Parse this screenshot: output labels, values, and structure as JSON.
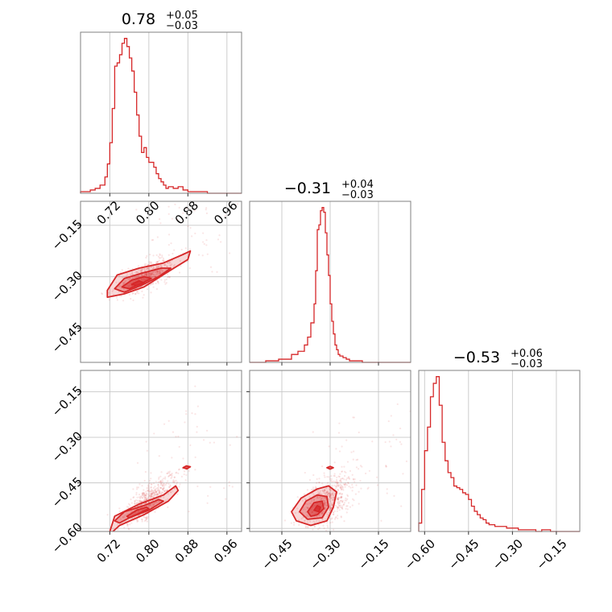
{
  "figure": {
    "type": "corner-plot",
    "color": "#d62728"
  },
  "chart_data": [
    {
      "type": "histogram",
      "panel": "diag-0",
      "title": {
        "value": "0.78",
        "upper": "+0.05",
        "lower": "−0.03"
      },
      "xlim": [
        0.66,
        0.99
      ],
      "xticks": [
        0.72,
        0.8,
        0.88,
        0.96
      ],
      "xtick_labels": [
        "0.72",
        "0.80",
        "0.88",
        "0.96"
      ],
      "grid": true,
      "bins": [
        0.66,
        0.67,
        0.68,
        0.69,
        0.7,
        0.71,
        0.715,
        0.72,
        0.725,
        0.73,
        0.735,
        0.74,
        0.745,
        0.75,
        0.755,
        0.76,
        0.765,
        0.77,
        0.775,
        0.78,
        0.785,
        0.79,
        0.795,
        0.8,
        0.805,
        0.81,
        0.815,
        0.82,
        0.825,
        0.83,
        0.835,
        0.84,
        0.85,
        0.86,
        0.87,
        0.88,
        0.89,
        0.9,
        0.91,
        0.92,
        0.93,
        0.94,
        0.95,
        0.96,
        0.97,
        0.98,
        0.99
      ],
      "counts": [
        1,
        1,
        2,
        3,
        5,
        10,
        18,
        31,
        52,
        78,
        80,
        85,
        92,
        95,
        90,
        83,
        75,
        62,
        48,
        35,
        25,
        28,
        22,
        19,
        19,
        16,
        12,
        9,
        7,
        5,
        3,
        4,
        3,
        4,
        2,
        1,
        1,
        1,
        1,
        0,
        0,
        0,
        0,
        0,
        0,
        0
      ]
    },
    {
      "type": "histogram",
      "panel": "diag-1",
      "title": {
        "value": "−0.31",
        "upper": "+0.04",
        "lower": "−0.03"
      },
      "xlim": [
        -0.55,
        -0.05
      ],
      "grid": true,
      "bins": [
        -0.55,
        -0.5,
        -0.46,
        -0.42,
        -0.4,
        -0.38,
        -0.37,
        -0.36,
        -0.35,
        -0.345,
        -0.34,
        -0.335,
        -0.33,
        -0.325,
        -0.32,
        -0.315,
        -0.31,
        -0.305,
        -0.3,
        -0.295,
        -0.29,
        -0.285,
        -0.28,
        -0.275,
        -0.27,
        -0.26,
        -0.25,
        -0.24,
        -0.22,
        -0.2,
        -0.18,
        -0.15,
        -0.1,
        -0.05
      ],
      "counts": [
        0,
        1,
        2,
        5,
        7,
        11,
        16,
        25,
        37,
        58,
        84,
        87,
        96,
        98,
        95,
        82,
        68,
        55,
        37,
        26,
        18,
        11,
        8,
        5,
        4,
        3,
        2,
        1,
        1,
        0,
        0,
        0,
        0
      ]
    },
    {
      "type": "histogram",
      "panel": "diag-2",
      "title": {
        "value": "−0.53",
        "upper": "+0.06",
        "lower": "−0.03"
      },
      "xlim": [
        -0.62,
        -0.07
      ],
      "xticks": [
        -0.6,
        -0.45,
        -0.3,
        -0.15
      ],
      "xtick_labels": [
        "−0.60",
        "−0.45",
        "−0.30",
        "−0.15"
      ],
      "grid": true,
      "bins": [
        -0.62,
        -0.61,
        -0.6,
        -0.59,
        -0.58,
        -0.57,
        -0.56,
        -0.55,
        -0.54,
        -0.53,
        -0.52,
        -0.51,
        -0.5,
        -0.49,
        -0.48,
        -0.47,
        -0.46,
        -0.45,
        -0.44,
        -0.43,
        -0.42,
        -0.41,
        -0.4,
        -0.39,
        -0.38,
        -0.36,
        -0.34,
        -0.32,
        -0.3,
        -0.28,
        -0.26,
        -0.24,
        -0.22,
        -0.2,
        -0.17,
        -0.14,
        -0.1,
        -0.07
      ],
      "counts": [
        5,
        25,
        48,
        62,
        80,
        88,
        92,
        75,
        53,
        42,
        35,
        32,
        27,
        26,
        25,
        23,
        22,
        19,
        15,
        12,
        10,
        8,
        7,
        5,
        4,
        3,
        3,
        2,
        2,
        1,
        1,
        1,
        0,
        1,
        0,
        0,
        0
      ]
    },
    {
      "type": "scatter-contour",
      "panel": "x0-y1",
      "xlim": [
        0.66,
        0.99
      ],
      "ylim": [
        -0.55,
        -0.08
      ],
      "yticks": [
        -0.15,
        -0.3,
        -0.45
      ],
      "ytick_labels": [
        "−0.15",
        "−0.30",
        "−0.45"
      ],
      "grid": true,
      "center": [
        0.775,
        -0.315
      ],
      "contours": [
        [
          [
            0.715,
            -0.34
          ],
          [
            0.735,
            -0.295
          ],
          [
            0.78,
            -0.275
          ],
          [
            0.83,
            -0.26
          ],
          [
            0.87,
            -0.235
          ],
          [
            0.885,
            -0.225
          ],
          [
            0.88,
            -0.25
          ],
          [
            0.84,
            -0.285
          ],
          [
            0.79,
            -0.33
          ],
          [
            0.75,
            -0.35
          ],
          [
            0.715,
            -0.36
          ]
        ],
        [
          [
            0.73,
            -0.335
          ],
          [
            0.75,
            -0.305
          ],
          [
            0.785,
            -0.29
          ],
          [
            0.825,
            -0.275
          ],
          [
            0.845,
            -0.275
          ],
          [
            0.82,
            -0.3
          ],
          [
            0.785,
            -0.325
          ],
          [
            0.75,
            -0.345
          ]
        ],
        [
          [
            0.745,
            -0.33
          ],
          [
            0.765,
            -0.31
          ],
          [
            0.79,
            -0.3
          ],
          [
            0.805,
            -0.305
          ],
          [
            0.785,
            -0.32
          ],
          [
            0.76,
            -0.335
          ]
        ],
        [
          [
            0.765,
            -0.322
          ],
          [
            0.78,
            -0.312
          ],
          [
            0.79,
            -0.318
          ],
          [
            0.775,
            -0.326
          ]
        ]
      ]
    },
    {
      "type": "scatter-contour",
      "panel": "x0-y2",
      "xlim": [
        0.66,
        0.99
      ],
      "ylim": [
        -0.61,
        -0.08
      ],
      "xticks": [
        0.72,
        0.8,
        0.88,
        0.96
      ],
      "xtick_labels": [
        "0.72",
        "0.80",
        "0.88",
        "0.96"
      ],
      "yticks": [
        -0.15,
        -0.3,
        -0.45,
        -0.6
      ],
      "ytick_labels": [
        "−0.15",
        "−0.30",
        "−0.45",
        "−0.60"
      ],
      "grid": true,
      "center": [
        0.78,
        -0.54
      ],
      "contours": [
        [
          [
            0.72,
            -0.61
          ],
          [
            0.73,
            -0.56
          ],
          [
            0.78,
            -0.52
          ],
          [
            0.83,
            -0.49
          ],
          [
            0.855,
            -0.46
          ],
          [
            0.86,
            -0.475
          ],
          [
            0.84,
            -0.51
          ],
          [
            0.79,
            -0.555
          ],
          [
            0.74,
            -0.59
          ],
          [
            0.725,
            -0.612
          ]
        ],
        [
          [
            0.73,
            -0.575
          ],
          [
            0.75,
            -0.545
          ],
          [
            0.79,
            -0.525
          ],
          [
            0.82,
            -0.505
          ],
          [
            0.83,
            -0.51
          ],
          [
            0.8,
            -0.54
          ],
          [
            0.76,
            -0.565
          ],
          [
            0.74,
            -0.582
          ]
        ],
        [
          [
            0.755,
            -0.56
          ],
          [
            0.775,
            -0.54
          ],
          [
            0.795,
            -0.53
          ],
          [
            0.8,
            -0.535
          ],
          [
            0.78,
            -0.55
          ],
          [
            0.76,
            -0.565
          ]
        ],
        [
          [
            0.87,
            -0.4
          ],
          [
            0.877,
            -0.394
          ],
          [
            0.885,
            -0.397
          ],
          [
            0.878,
            -0.404
          ]
        ]
      ]
    },
    {
      "type": "scatter-contour",
      "panel": "x1-y2",
      "xlim": [
        -0.55,
        -0.05
      ],
      "ylim": [
        -0.61,
        -0.08
      ],
      "xticks": [
        -0.45,
        -0.3,
        -0.15
      ],
      "xtick_labels": [
        "−0.45",
        "−0.30",
        "−0.15"
      ],
      "grid": true,
      "center": [
        -0.335,
        -0.535
      ],
      "contours": [
        [
          [
            -0.42,
            -0.545
          ],
          [
            -0.39,
            -0.5
          ],
          [
            -0.34,
            -0.47
          ],
          [
            -0.305,
            -0.46
          ],
          [
            -0.28,
            -0.48
          ],
          [
            -0.29,
            -0.53
          ],
          [
            -0.31,
            -0.575
          ],
          [
            -0.36,
            -0.59
          ],
          [
            -0.405,
            -0.575
          ]
        ],
        [
          [
            -0.395,
            -0.545
          ],
          [
            -0.375,
            -0.51
          ],
          [
            -0.34,
            -0.49
          ],
          [
            -0.31,
            -0.495
          ],
          [
            -0.305,
            -0.53
          ],
          [
            -0.325,
            -0.565
          ],
          [
            -0.37,
            -0.57
          ]
        ],
        [
          [
            -0.37,
            -0.545
          ],
          [
            -0.35,
            -0.515
          ],
          [
            -0.325,
            -0.51
          ],
          [
            -0.32,
            -0.535
          ],
          [
            -0.34,
            -0.555
          ],
          [
            -0.36,
            -0.56
          ]
        ],
        [
          [
            -0.35,
            -0.54
          ],
          [
            -0.34,
            -0.525
          ],
          [
            -0.33,
            -0.53
          ],
          [
            -0.335,
            -0.545
          ]
        ],
        [
          [
            -0.31,
            -0.4
          ],
          [
            -0.3,
            -0.396
          ],
          [
            -0.29,
            -0.4
          ],
          [
            -0.3,
            -0.405
          ]
        ]
      ]
    }
  ]
}
